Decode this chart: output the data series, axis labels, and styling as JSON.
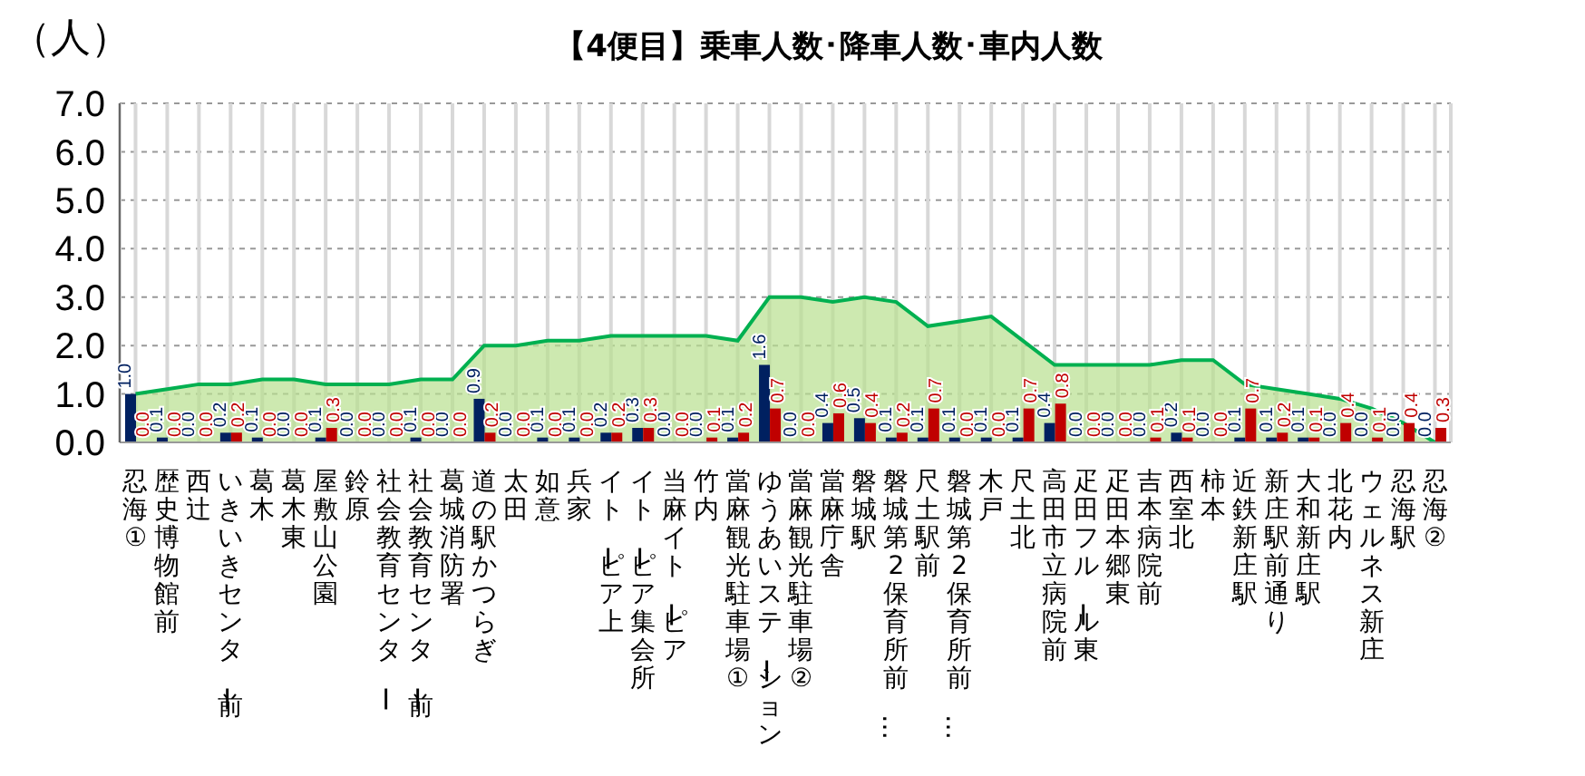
{
  "chart_data": {
    "type": "bar",
    "title": "【4便目】乗車人数･降車人数･車内人数",
    "ylabel": "（人）",
    "categories": [
      "忍海①",
      "歴史博物館前",
      "西辻",
      "いきいきセンター前",
      "葛木",
      "葛木東",
      "屋敷山公園",
      "鈴原",
      "社会教育センター",
      "社会教育センター前",
      "葛城消防署",
      "道の駅かつらぎ",
      "太田",
      "如意",
      "兵家",
      "イトーピア上",
      "イトーピア集会所",
      "当麻イトーピア",
      "竹内",
      "當麻観光駐車場①",
      "ゆうあいステーション",
      "當麻観光駐車場②",
      "當麻庁舎",
      "磐城駅",
      "磐城第2保育所前…",
      "尺土駅前",
      "磐城第2保育所前…",
      "木戸",
      "尺土北",
      "高田市立病院前",
      "疋田フルール東",
      "疋田本郷東",
      "吉本病院前",
      "西室北",
      "柿本",
      "近鉄新庄駅",
      "新庄駅前通り",
      "大和新庄駅",
      "北花内",
      "ウェルネス新庄",
      "忍海駅",
      "忍海②"
    ],
    "series": [
      {
        "type": "area",
        "color": "#00b050",
        "values": [
          1.0,
          1.1,
          1.2,
          1.2,
          1.3,
          1.3,
          1.2,
          1.2,
          1.2,
          1.3,
          1.3,
          2.0,
          2.0,
          2.1,
          2.1,
          2.2,
          2.2,
          2.2,
          2.2,
          2.1,
          3.0,
          3.0,
          2.9,
          3.0,
          2.9,
          2.4,
          2.5,
          2.6,
          2.1,
          1.6,
          1.6,
          1.6,
          1.6,
          1.7,
          1.7,
          1.2,
          1.1,
          1.0,
          0.9,
          0.7,
          0.4,
          0.0
        ]
      },
      {
        "type": "bar",
        "color": "#002060",
        "values": [
          1.0,
          0.1,
          0.0,
          0.2,
          0.1,
          0.0,
          0.1,
          0.0,
          0.0,
          0.1,
          0.0,
          0.9,
          0.0,
          0.1,
          0.1,
          0.2,
          0.3,
          0.0,
          0.0,
          0.1,
          1.6,
          0.0,
          0.4,
          0.5,
          0.1,
          0.1,
          0.1,
          0.1,
          0.1,
          0.4,
          0.0,
          0.0,
          0.0,
          0.2,
          0.0,
          0.1,
          0.1,
          0.1,
          0.0,
          0.0,
          0.0,
          0.0
        ],
        "value_labels": [
          "1.0",
          "0.1",
          "0.0",
          "0.2",
          "0.1",
          "0.0",
          "0.1",
          "0.0",
          "0.0",
          "0.1",
          "0.0",
          "0.9",
          "0.0",
          "0.1",
          "0.1",
          "0.2",
          "0.3",
          "0.0",
          "0.0",
          "0.1",
          "1.6",
          "0.0",
          "0.4",
          "0.5",
          "0.1",
          "0.1",
          "0.1",
          "0.1",
          "0.1",
          "0.4",
          "0.0",
          "0.0",
          "0.0",
          "0.2",
          "0.0",
          "0.1",
          "0.1",
          "0.1",
          "0.0",
          "0.0",
          "0.0",
          "0.0"
        ]
      },
      {
        "type": "bar",
        "color": "#c00000",
        "values": [
          0.0,
          0.0,
          0.0,
          0.2,
          0.0,
          0.0,
          0.3,
          0.0,
          0.0,
          0.0,
          0.0,
          0.2,
          0.0,
          0.0,
          0.0,
          0.2,
          0.3,
          0.0,
          0.1,
          0.2,
          0.7,
          0.0,
          0.6,
          0.4,
          0.2,
          0.7,
          0.0,
          0.0,
          0.7,
          0.8,
          0.0,
          0.0,
          0.1,
          0.1,
          0.0,
          0.7,
          0.2,
          0.1,
          0.4,
          0.1,
          0.4,
          0.3
        ],
        "value_labels": [
          "0.0",
          "0.0",
          "0.0",
          "0.2",
          "0.0",
          "0.0",
          "0.3",
          "0.0",
          "0.0",
          "0.0",
          "0.0",
          "0.2",
          "0.0",
          "0.0",
          "0.0",
          "0.2",
          "0.3",
          "0.0",
          "0.1",
          "0.2",
          "0.7",
          "0.0",
          "0.6",
          "0.4",
          "0.2",
          "0.7",
          "0.0",
          "0.0",
          "0.7",
          "0.8",
          "0.0",
          "0.0",
          "0.1",
          "0.1",
          "0.0",
          "0.7",
          "0.2",
          "0.1",
          "0.4",
          "0.1",
          "0.4",
          "0.3"
        ]
      }
    ],
    "ylim": [
      0,
      7
    ],
    "yticks": [
      {
        "value": 0,
        "label": "0.0"
      },
      {
        "value": 1,
        "label": "1.0"
      },
      {
        "value": 2,
        "label": "2.0"
      },
      {
        "value": 3,
        "label": "3.0"
      },
      {
        "value": 4,
        "label": "4.0"
      },
      {
        "value": 5,
        "label": "5.0"
      },
      {
        "value": 6,
        "label": "6.0"
      },
      {
        "value": 7,
        "label": "7.0"
      }
    ],
    "grid": true
  }
}
